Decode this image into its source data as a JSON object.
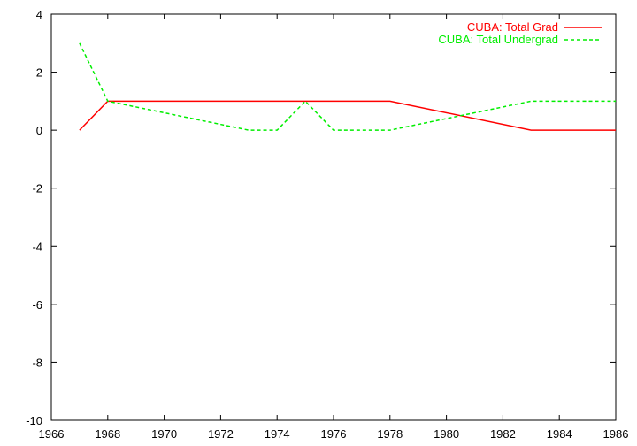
{
  "chart_data": {
    "type": "line",
    "title": "",
    "xlabel": "",
    "ylabel": "",
    "xlim": [
      1966,
      1986
    ],
    "ylim": [
      -10,
      4
    ],
    "xticks": [
      1966,
      1968,
      1970,
      1972,
      1974,
      1976,
      1978,
      1980,
      1982,
      1984,
      1986
    ],
    "yticks": [
      -10,
      -8,
      -6,
      -4,
      -2,
      0,
      2,
      4
    ],
    "grid": false,
    "legend_position": "top-right",
    "series": [
      {
        "name": "CUBA: Total Grad",
        "color": "#ff0000",
        "style": "solid",
        "x": [
          1967,
          1968,
          1978,
          1983,
          1986
        ],
        "y": [
          0,
          1,
          1,
          0,
          0
        ]
      },
      {
        "name": "CUBA: Total Undergrad",
        "color": "#00ee00",
        "style": "dashed",
        "x": [
          1967,
          1968,
          1973,
          1974,
          1975,
          1976,
          1978,
          1983,
          1986
        ],
        "y": [
          3,
          1,
          0,
          0,
          1,
          0,
          0,
          1,
          1
        ]
      }
    ]
  }
}
